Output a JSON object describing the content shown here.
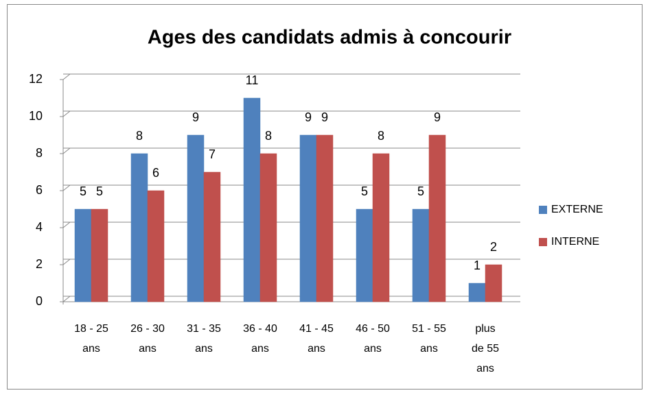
{
  "chart_data": {
    "type": "bar",
    "title": "Ages des candidats admis à concourir",
    "categories": [
      "18 - 25 ans",
      "26 - 30 ans",
      "31 - 35 ans",
      "36 - 40 ans",
      "41 - 45 ans",
      "46 - 50 ans",
      "51 - 55 ans",
      "plus de 55 ans"
    ],
    "series": [
      {
        "name": "EXTERNE",
        "color": "#4f81bd",
        "values": [
          5,
          8,
          9,
          11,
          9,
          5,
          5,
          1
        ]
      },
      {
        "name": "INTERNE",
        "color": "#c0504d",
        "values": [
          5,
          6,
          7,
          8,
          9,
          8,
          9,
          2
        ]
      }
    ],
    "ylim": [
      0,
      12
    ],
    "yticks": [
      0,
      2,
      4,
      6,
      8,
      10,
      12
    ],
    "grid": true,
    "legend": "right"
  }
}
